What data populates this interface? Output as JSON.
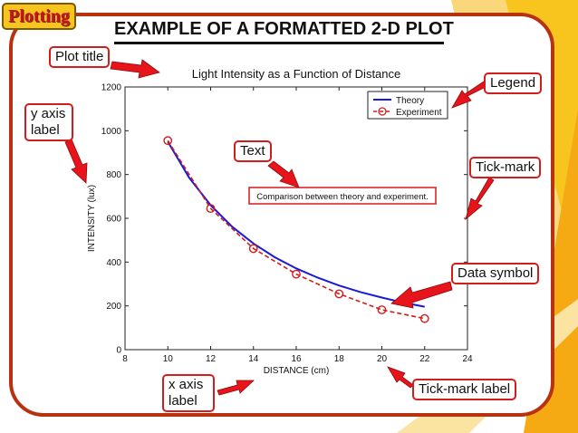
{
  "header": {
    "tag_label": "Plotting",
    "title": "EXAMPLE OF A FORMATTED 2-D PLOT"
  },
  "callouts": {
    "plot_title": "Plot title",
    "legend": "Legend",
    "y_axis_label": "y axis label",
    "text": "Text",
    "tick_mark": "Tick-mark",
    "data_symbol": "Data symbol",
    "x_axis_label": "x axis label",
    "tick_mark_label": "Tick-mark label"
  },
  "colors": {
    "frame": "#b8320f",
    "arrow": "#e8141c",
    "theory": "#1a1ad6",
    "experiment": "#d41c1c",
    "accent": "#f7c51e"
  },
  "chart_data": {
    "type": "line",
    "title": "Light Intensity as a Function of Distance",
    "xlabel": "DISTANCE (cm)",
    "ylabel": "INTENSITY (lux)",
    "xlim": [
      8,
      24
    ],
    "ylim": [
      0,
      1200
    ],
    "xticks": [
      8,
      10,
      12,
      14,
      16,
      18,
      20,
      22,
      24
    ],
    "yticks": [
      0,
      200,
      400,
      600,
      800,
      1000,
      1200
    ],
    "legend_position": "top-right",
    "annotation": "Comparison between theory and experiment.",
    "series": [
      {
        "name": "Theory",
        "style": "solid",
        "x": [
          10,
          11,
          12,
          13,
          14,
          15,
          16,
          17,
          18,
          19,
          20,
          21,
          22
        ],
        "y": [
          950,
          785,
          660,
          562,
          485,
          422,
          371,
          329,
          293,
          263,
          238,
          215,
          196
        ]
      },
      {
        "name": "Experiment",
        "style": "dashed-circle",
        "x": [
          10,
          12,
          14,
          16,
          18,
          20,
          22
        ],
        "y": [
          955,
          645,
          462,
          345,
          255,
          182,
          142
        ]
      }
    ]
  }
}
